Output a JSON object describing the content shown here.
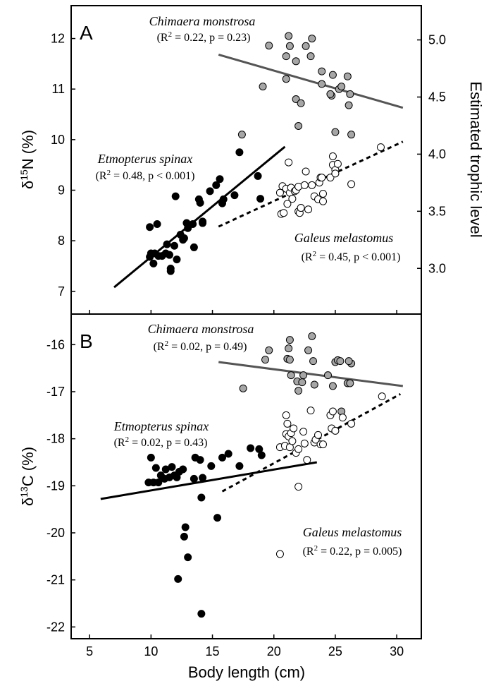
{
  "chart_data": [
    {
      "panel": "A",
      "type": "scatter",
      "xlabel": "Body length (cm)",
      "ylabel_pre": "δ",
      "ylabel_sup": "15",
      "ylabel_post": "N (%)",
      "y2label": "Estimated trophic level",
      "xlim": [
        3.5,
        32
      ],
      "ylim": [
        6.55,
        12.65
      ],
      "y2lim": [
        2.6,
        5.3
      ],
      "xticks": [
        "5",
        "10",
        "15",
        "20",
        "25",
        "30"
      ],
      "xtick_values": [
        5,
        10,
        15,
        20,
        25,
        30
      ],
      "yticks": [
        "7",
        "8",
        "9",
        "10",
        "11",
        "12"
      ],
      "ytick_values": [
        7,
        8,
        9,
        10,
        11,
        12
      ],
      "y2ticks": [
        "3.0",
        "3.5",
        "4.0",
        "4.5",
        "5.0"
      ],
      "y2tick_values": [
        3.0,
        3.5,
        4.0,
        4.5,
        5.0
      ],
      "series": [
        {
          "name": "Chimaera monstrosa",
          "stats_pre": "(R",
          "stats_sup": "2",
          "stats_post": " = 0.22, p = 0.23)",
          "fill": "#a6a6a6",
          "line_color": "#555555",
          "line_style": "solid",
          "fit": [
            [
              15.5,
              11.68
            ],
            [
              30.5,
              10.63
            ]
          ],
          "points": [
            [
              17.4,
              10.1
            ],
            [
              19.1,
              11.05
            ],
            [
              19.6,
              11.86
            ],
            [
              21.0,
              11.65
            ],
            [
              21.2,
              12.05
            ],
            [
              21.3,
              11.85
            ],
            [
              21.0,
              11.2
            ],
            [
              21.8,
              11.55
            ],
            [
              21.8,
              10.8
            ],
            [
              22.2,
              10.72
            ],
            [
              22.0,
              10.27
            ],
            [
              22.6,
              11.85
            ],
            [
              23.1,
              12.0
            ],
            [
              23.0,
              11.65
            ],
            [
              23.9,
              11.35
            ],
            [
              23.9,
              11.1
            ],
            [
              24.7,
              10.87
            ],
            [
              24.6,
              10.9
            ],
            [
              24.8,
              11.28
            ],
            [
              25.0,
              10.15
            ],
            [
              25.3,
              11.0
            ],
            [
              25.5,
              11.05
            ],
            [
              26.0,
              11.25
            ],
            [
              26.1,
              10.68
            ],
            [
              26.2,
              10.9
            ],
            [
              26.3,
              10.1
            ]
          ]
        },
        {
          "name": "Etmopterus spinax",
          "stats_pre": "(R",
          "stats_sup": "2",
          "stats_post": " = 0.48, p < 0.001)",
          "fill": "#000000",
          "line_color": "#000000",
          "line_style": "solid",
          "fit": [
            [
              7.0,
              7.08
            ],
            [
              20.9,
              9.86
            ]
          ],
          "points": [
            [
              9.9,
              7.68
            ],
            [
              9.9,
              8.27
            ],
            [
              10.0,
              7.75
            ],
            [
              10.2,
              7.55
            ],
            [
              10.3,
              7.75
            ],
            [
              10.5,
              8.33
            ],
            [
              10.6,
              7.7
            ],
            [
              10.9,
              7.7
            ],
            [
              11.2,
              7.75
            ],
            [
              11.3,
              7.93
            ],
            [
              11.5,
              7.72
            ],
            [
              11.6,
              7.4
            ],
            [
              11.6,
              7.45
            ],
            [
              11.9,
              7.9
            ],
            [
              12.0,
              8.88
            ],
            [
              12.1,
              7.63
            ],
            [
              12.4,
              8.12
            ],
            [
              12.6,
              8.02
            ],
            [
              12.7,
              8.05
            ],
            [
              12.9,
              8.35
            ],
            [
              13.0,
              8.25
            ],
            [
              13.4,
              8.33
            ],
            [
              13.5,
              7.87
            ],
            [
              13.9,
              8.82
            ],
            [
              14.0,
              8.75
            ],
            [
              14.2,
              8.38
            ],
            [
              14.2,
              8.35
            ],
            [
              14.8,
              8.98
            ],
            [
              15.3,
              9.1
            ],
            [
              15.6,
              9.22
            ],
            [
              15.9,
              8.82
            ],
            [
              15.8,
              8.74
            ],
            [
              16.8,
              8.9
            ],
            [
              17.2,
              9.75
            ],
            [
              18.7,
              9.28
            ],
            [
              18.9,
              8.83
            ]
          ]
        },
        {
          "name": "Galeus melastomus",
          "stats_pre": "(R",
          "stats_sup": "2",
          "stats_post": " = 0.45, p < 0.001)",
          "fill": "#ffffff",
          "line_color": "#000000",
          "line_style": "dashed",
          "fit": [
            [
              15.5,
              8.28
            ],
            [
              30.5,
              9.96
            ]
          ],
          "points": [
            [
              20.5,
              8.95
            ],
            [
              20.6,
              8.53
            ],
            [
              20.7,
              9.08
            ],
            [
              20.8,
              8.55
            ],
            [
              21.0,
              9.03
            ],
            [
              21.1,
              8.73
            ],
            [
              21.2,
              9.55
            ],
            [
              21.3,
              8.95
            ],
            [
              21.4,
              9.05
            ],
            [
              21.5,
              8.83
            ],
            [
              21.7,
              8.98
            ],
            [
              21.8,
              9.0
            ],
            [
              22.0,
              9.07
            ],
            [
              22.0,
              8.58
            ],
            [
              22.1,
              8.55
            ],
            [
              22.2,
              8.65
            ],
            [
              22.5,
              9.1
            ],
            [
              22.6,
              9.37
            ],
            [
              22.8,
              8.62
            ],
            [
              23.1,
              9.1
            ],
            [
              23.3,
              8.88
            ],
            [
              23.6,
              8.82
            ],
            [
              23.7,
              9.15
            ],
            [
              23.8,
              9.25
            ],
            [
              23.9,
              9.25
            ],
            [
              24.0,
              8.93
            ],
            [
              24.0,
              8.78
            ],
            [
              24.6,
              9.25
            ],
            [
              24.8,
              9.5
            ],
            [
              24.8,
              9.67
            ],
            [
              25.0,
              9.4
            ],
            [
              25.2,
              9.52
            ],
            [
              25.0,
              9.33
            ],
            [
              26.3,
              9.12
            ],
            [
              28.7,
              9.85
            ]
          ]
        }
      ]
    },
    {
      "panel": "B",
      "type": "scatter",
      "xlabel": "Body length (cm)",
      "ylabel_pre": "δ",
      "ylabel_sup": "13",
      "ylabel_post": "C (%)",
      "xlim": [
        3.5,
        32
      ],
      "ylim": [
        -22.25,
        -15.35
      ],
      "xticks": [
        "5",
        "10",
        "15",
        "20",
        "25",
        "30"
      ],
      "xtick_values": [
        5,
        10,
        15,
        20,
        25,
        30
      ],
      "yticks": [
        "-16",
        "-17",
        "-18",
        "-19",
        "-20",
        "-21",
        "-22"
      ],
      "ytick_values": [
        -16,
        -17,
        -18,
        -19,
        -20,
        -21,
        -22
      ],
      "series": [
        {
          "name": "Chimaera monstrosa",
          "stats_pre": "(R",
          "stats_sup": "2",
          "stats_post": " = 0.02, p = 0.49)",
          "fill": "#a6a6a6",
          "line_color": "#555555",
          "line_style": "solid",
          "fit": [
            [
              15.5,
              -16.37
            ],
            [
              30.5,
              -16.88
            ]
          ],
          "points": [
            [
              17.5,
              -16.93
            ],
            [
              19.3,
              -16.32
            ],
            [
              19.6,
              -16.12
            ],
            [
              21.1,
              -16.3
            ],
            [
              21.2,
              -16.08
            ],
            [
              21.3,
              -15.9
            ],
            [
              21.4,
              -16.65
            ],
            [
              21.3,
              -16.32
            ],
            [
              21.9,
              -16.78
            ],
            [
              22.0,
              -16.98
            ],
            [
              22.3,
              -16.8
            ],
            [
              22.4,
              -16.65
            ],
            [
              22.8,
              -16.12
            ],
            [
              23.1,
              -15.82
            ],
            [
              23.2,
              -16.35
            ],
            [
              23.3,
              -16.85
            ],
            [
              24.4,
              -16.65
            ],
            [
              24.8,
              -16.88
            ],
            [
              25.0,
              -16.37
            ],
            [
              25.2,
              -16.33
            ],
            [
              25.4,
              -16.35
            ],
            [
              25.5,
              -17.42
            ],
            [
              26.0,
              -16.82
            ],
            [
              26.2,
              -16.82
            ],
            [
              26.3,
              -16.4
            ],
            [
              26.1,
              -16.35
            ]
          ]
        },
        {
          "name": "Etmopterus spinax",
          "stats_pre": "(R",
          "stats_sup": "2",
          "stats_post": " = 0.02, p = 0.43)",
          "fill": "#000000",
          "line_color": "#000000",
          "line_style": "solid",
          "fit": [
            [
              5.9,
              -19.28
            ],
            [
              23.5,
              -18.5
            ]
          ],
          "points": [
            [
              9.8,
              -18.93
            ],
            [
              10.0,
              -18.4
            ],
            [
              10.2,
              -18.93
            ],
            [
              10.4,
              -18.62
            ],
            [
              10.6,
              -18.93
            ],
            [
              10.8,
              -18.78
            ],
            [
              11.1,
              -18.85
            ],
            [
              11.2,
              -18.65
            ],
            [
              11.5,
              -18.82
            ],
            [
              11.7,
              -18.6
            ],
            [
              11.9,
              -18.78
            ],
            [
              12.1,
              -18.82
            ],
            [
              12.3,
              -18.7
            ],
            [
              12.6,
              -18.65
            ],
            [
              12.8,
              -19.88
            ],
            [
              12.7,
              -20.08
            ],
            [
              13.0,
              -20.52
            ],
            [
              12.2,
              -20.98
            ],
            [
              13.5,
              -18.85
            ],
            [
              13.6,
              -18.4
            ],
            [
              14.0,
              -18.45
            ],
            [
              14.1,
              -19.25
            ],
            [
              14.2,
              -18.83
            ],
            [
              14.1,
              -21.72
            ],
            [
              14.9,
              -18.58
            ],
            [
              15.4,
              -19.68
            ],
            [
              15.8,
              -18.4
            ],
            [
              16.3,
              -18.32
            ],
            [
              17.2,
              -18.58
            ],
            [
              18.1,
              -18.2
            ],
            [
              18.8,
              -18.22
            ],
            [
              19.0,
              -18.35
            ]
          ]
        },
        {
          "name": "Galeus melastomus",
          "stats_pre": "(R",
          "stats_sup": "2",
          "stats_post": " = 0.22, p = 0.005)",
          "fill": "#ffffff",
          "line_color": "#000000",
          "line_style": "dashed",
          "fit": [
            [
              15.8,
              -19.12
            ],
            [
              30.3,
              -17.05
            ]
          ],
          "points": [
            [
              20.5,
              -18.18
            ],
            [
              20.5,
              -20.45
            ],
            [
              20.9,
              -18.15
            ],
            [
              21.0,
              -17.5
            ],
            [
              21.1,
              -17.68
            ],
            [
              21.0,
              -17.9
            ],
            [
              21.2,
              -17.95
            ],
            [
              21.3,
              -18.18
            ],
            [
              21.4,
              -17.88
            ],
            [
              21.5,
              -18.05
            ],
            [
              21.6,
              -17.78
            ],
            [
              21.8,
              -18.3
            ],
            [
              22.0,
              -19.02
            ],
            [
              22.0,
              -18.22
            ],
            [
              22.4,
              -17.85
            ],
            [
              22.5,
              -18.1
            ],
            [
              22.7,
              -18.45
            ],
            [
              23.0,
              -17.4
            ],
            [
              23.3,
              -18.08
            ],
            [
              23.4,
              -18.02
            ],
            [
              23.6,
              -17.92
            ],
            [
              23.8,
              -18.12
            ],
            [
              24.0,
              -18.12
            ],
            [
              24.6,
              -17.5
            ],
            [
              24.8,
              -17.42
            ],
            [
              24.7,
              -17.78
            ],
            [
              25.0,
              -17.83
            ],
            [
              25.6,
              -17.55
            ],
            [
              26.3,
              -17.68
            ],
            [
              28.8,
              -17.1
            ]
          ]
        }
      ]
    }
  ]
}
